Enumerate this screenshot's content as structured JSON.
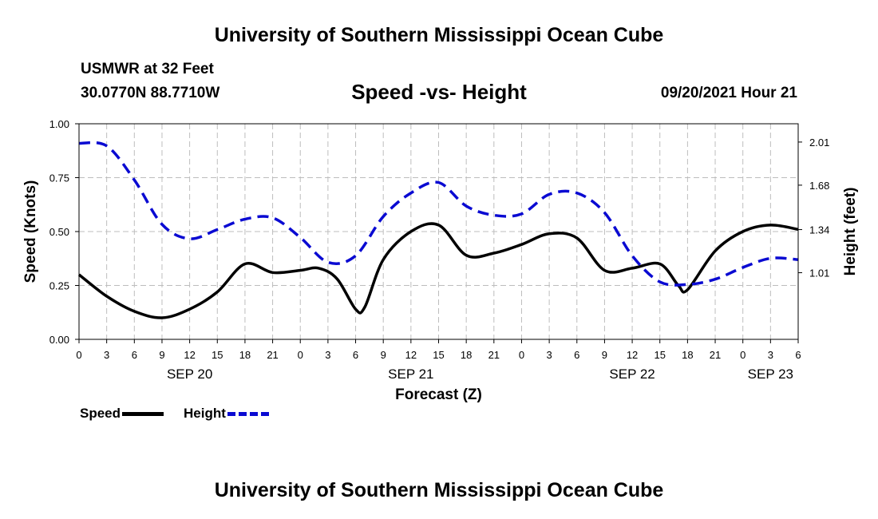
{
  "page": {
    "title_top": "University of Southern Mississippi Ocean Cube",
    "title_bottom": "University of Southern Mississippi Ocean Cube",
    "station": "USMWR at 32 Feet",
    "coords": "30.0770N  88.7710W",
    "subtitle": "Speed -vs- Height",
    "datetime": "09/20/2021 Hour 21"
  },
  "colors": {
    "speed": "#000000",
    "height": "#0a0ad2",
    "grid": "#bdbdbd"
  },
  "chart_data": {
    "type": "line",
    "title": "Speed -vs- Height",
    "xlabel": "Forecast (Z)",
    "ylabel": "Speed (Knots)",
    "y2label": "Height (feet)",
    "x_hour_range": [
      0,
      78
    ],
    "x_tick_hours": [
      0,
      3,
      6,
      9,
      12,
      15,
      18,
      21,
      24,
      27,
      30,
      33,
      36,
      39,
      42,
      45,
      48,
      51,
      54,
      57,
      60,
      63,
      66,
      69,
      72,
      75,
      78
    ],
    "x_tick_labels": [
      "0",
      "3",
      "6",
      "9",
      "12",
      "15",
      "18",
      "21",
      "0",
      "3",
      "6",
      "9",
      "12",
      "15",
      "18",
      "21",
      "0",
      "3",
      "6",
      "9",
      "12",
      "15",
      "18",
      "21",
      "0",
      "3",
      "6"
    ],
    "date_labels": [
      {
        "hour": 12,
        "label": "SEP 20"
      },
      {
        "hour": 36,
        "label": "SEP 21"
      },
      {
        "hour": 60,
        "label": "SEP 22"
      },
      {
        "hour": 75,
        "label": "SEP 23"
      }
    ],
    "ylim": [
      0,
      1.0
    ],
    "y_ticks": [
      0.0,
      0.25,
      0.5,
      0.75,
      1.0
    ],
    "y_tick_labels": [
      "0.00",
      "0.25",
      "0.50",
      "0.75",
      "1.00"
    ],
    "y2lim": [
      0.5,
      2.15
    ],
    "y2_ticks": [
      1.01,
      1.34,
      1.68,
      2.01
    ],
    "y2_tick_labels": [
      "1.01",
      "1.34",
      "1.68",
      "2.01"
    ],
    "grid": true,
    "legend": [
      {
        "name": "Speed",
        "style": "solid"
      },
      {
        "name": "Height",
        "style": "dashed"
      }
    ],
    "series": [
      {
        "name": "Speed",
        "axis": "left",
        "x": [
          0,
          3,
          6,
          9,
          12,
          15,
          18,
          21,
          24,
          26,
          28,
          30,
          31,
          33,
          36,
          39,
          42,
          45,
          48,
          51,
          54,
          57,
          60,
          63,
          65,
          66,
          69,
          72,
          75,
          78
        ],
        "y": [
          0.3,
          0.2,
          0.13,
          0.1,
          0.14,
          0.22,
          0.35,
          0.31,
          0.32,
          0.33,
          0.28,
          0.14,
          0.15,
          0.37,
          0.5,
          0.53,
          0.39,
          0.4,
          0.44,
          0.49,
          0.47,
          0.32,
          0.33,
          0.35,
          0.25,
          0.23,
          0.41,
          0.5,
          0.53,
          0.51
        ]
      },
      {
        "name": "Height",
        "axis": "right",
        "x": [
          0,
          3,
          6,
          9,
          12,
          15,
          18,
          21,
          24,
          27,
          30,
          33,
          36,
          39,
          42,
          45,
          48,
          51,
          54,
          57,
          60,
          63,
          66,
          69,
          72,
          75,
          78
        ],
        "y": [
          2.0,
          1.98,
          1.72,
          1.38,
          1.27,
          1.34,
          1.42,
          1.43,
          1.28,
          1.09,
          1.14,
          1.44,
          1.62,
          1.7,
          1.52,
          1.45,
          1.46,
          1.61,
          1.62,
          1.47,
          1.14,
          0.94,
          0.92,
          0.96,
          1.05,
          1.12,
          1.11
        ]
      }
    ]
  }
}
